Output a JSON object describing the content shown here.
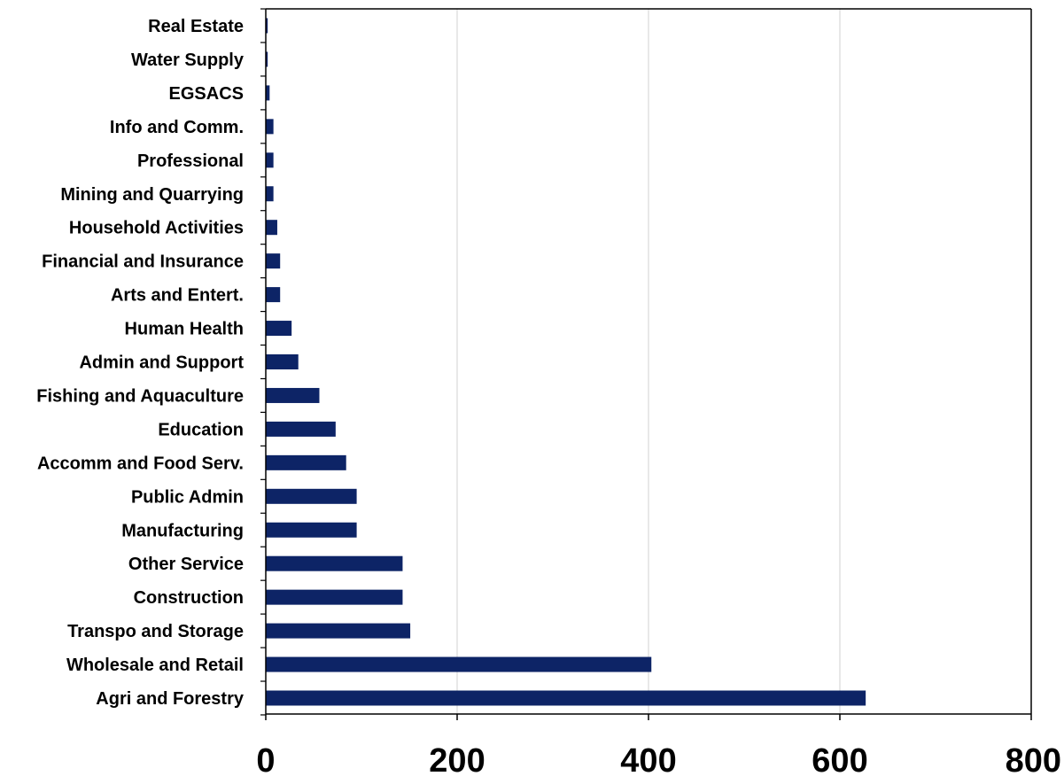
{
  "colors": {
    "bar": "#0d2466",
    "gridline": "#d0d0d0",
    "axis": "#000000",
    "frame": "#000000"
  },
  "chart_data": {
    "type": "bar",
    "orientation": "horizontal",
    "title": "",
    "xlabel": "",
    "ylabel": "",
    "xlim": [
      0,
      800
    ],
    "xticks": [
      0,
      200,
      400,
      600,
      800
    ],
    "grid": "vertical",
    "legend": "none",
    "categories": [
      "Agri and Forestry",
      "Wholesale and Retail",
      "Transpo and Storage",
      "Construction",
      "Other Service",
      "Manufacturing",
      "Public Admin",
      "Accomm and Food Serv.",
      "Education",
      "Fishing and Aquaculture",
      "Admin and Support",
      "Human Health",
      "Arts and Entert.",
      "Financial and Insurance",
      "Household Activities",
      "Mining and Quarrying",
      "Professional",
      "Info and Comm.",
      "EGSACS",
      "Water Supply",
      "Real Estate"
    ],
    "values": [
      627,
      403,
      151,
      143,
      143,
      95,
      95,
      84,
      73,
      56,
      34,
      27,
      15,
      15,
      12,
      8,
      8,
      8,
      4,
      2,
      2
    ]
  }
}
